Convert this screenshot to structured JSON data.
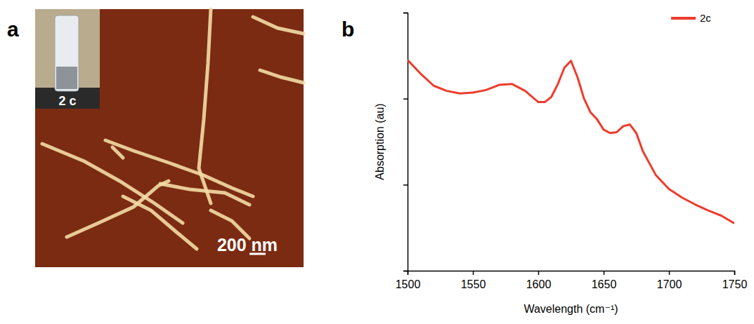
{
  "panel_a": {
    "label": "a",
    "inset_label": "2 c",
    "scale_bar": "200 nm"
  },
  "chart_data": {
    "type": "line",
    "panel_label": "b",
    "x_label": "Wavelength (cm⁻¹)",
    "y_label": "Absorption (au)",
    "x": [
      1500,
      1510,
      1520,
      1530,
      1540,
      1550,
      1560,
      1570,
      1580,
      1590,
      1600,
      1605,
      1610,
      1615,
      1620,
      1625,
      1630,
      1635,
      1640,
      1645,
      1650,
      1655,
      1660,
      1665,
      1670,
      1675,
      1680,
      1690,
      1700,
      1710,
      1720,
      1730,
      1740,
      1750
    ],
    "series": [
      {
        "name": "2c",
        "color": "#ef3b2c",
        "values": [
          2.45,
          2.29,
          2.15,
          2.09,
          2.06,
          2.07,
          2.1,
          2.16,
          2.17,
          2.09,
          1.96,
          1.96,
          2.02,
          2.17,
          2.36,
          2.44,
          2.25,
          2.0,
          1.84,
          1.76,
          1.64,
          1.6,
          1.61,
          1.68,
          1.7,
          1.6,
          1.39,
          1.11,
          0.95,
          0.85,
          0.77,
          0.7,
          0.64,
          0.55
        ]
      }
    ],
    "xlim": [
      1500,
      1750
    ],
    "xticks": [
      1500,
      1550,
      1600,
      1650,
      1700,
      1750
    ],
    "ylim": [
      0,
      3
    ],
    "yticks": [
      0,
      1,
      2,
      3
    ],
    "tick_labels": "x",
    "legend": "upper right"
  }
}
